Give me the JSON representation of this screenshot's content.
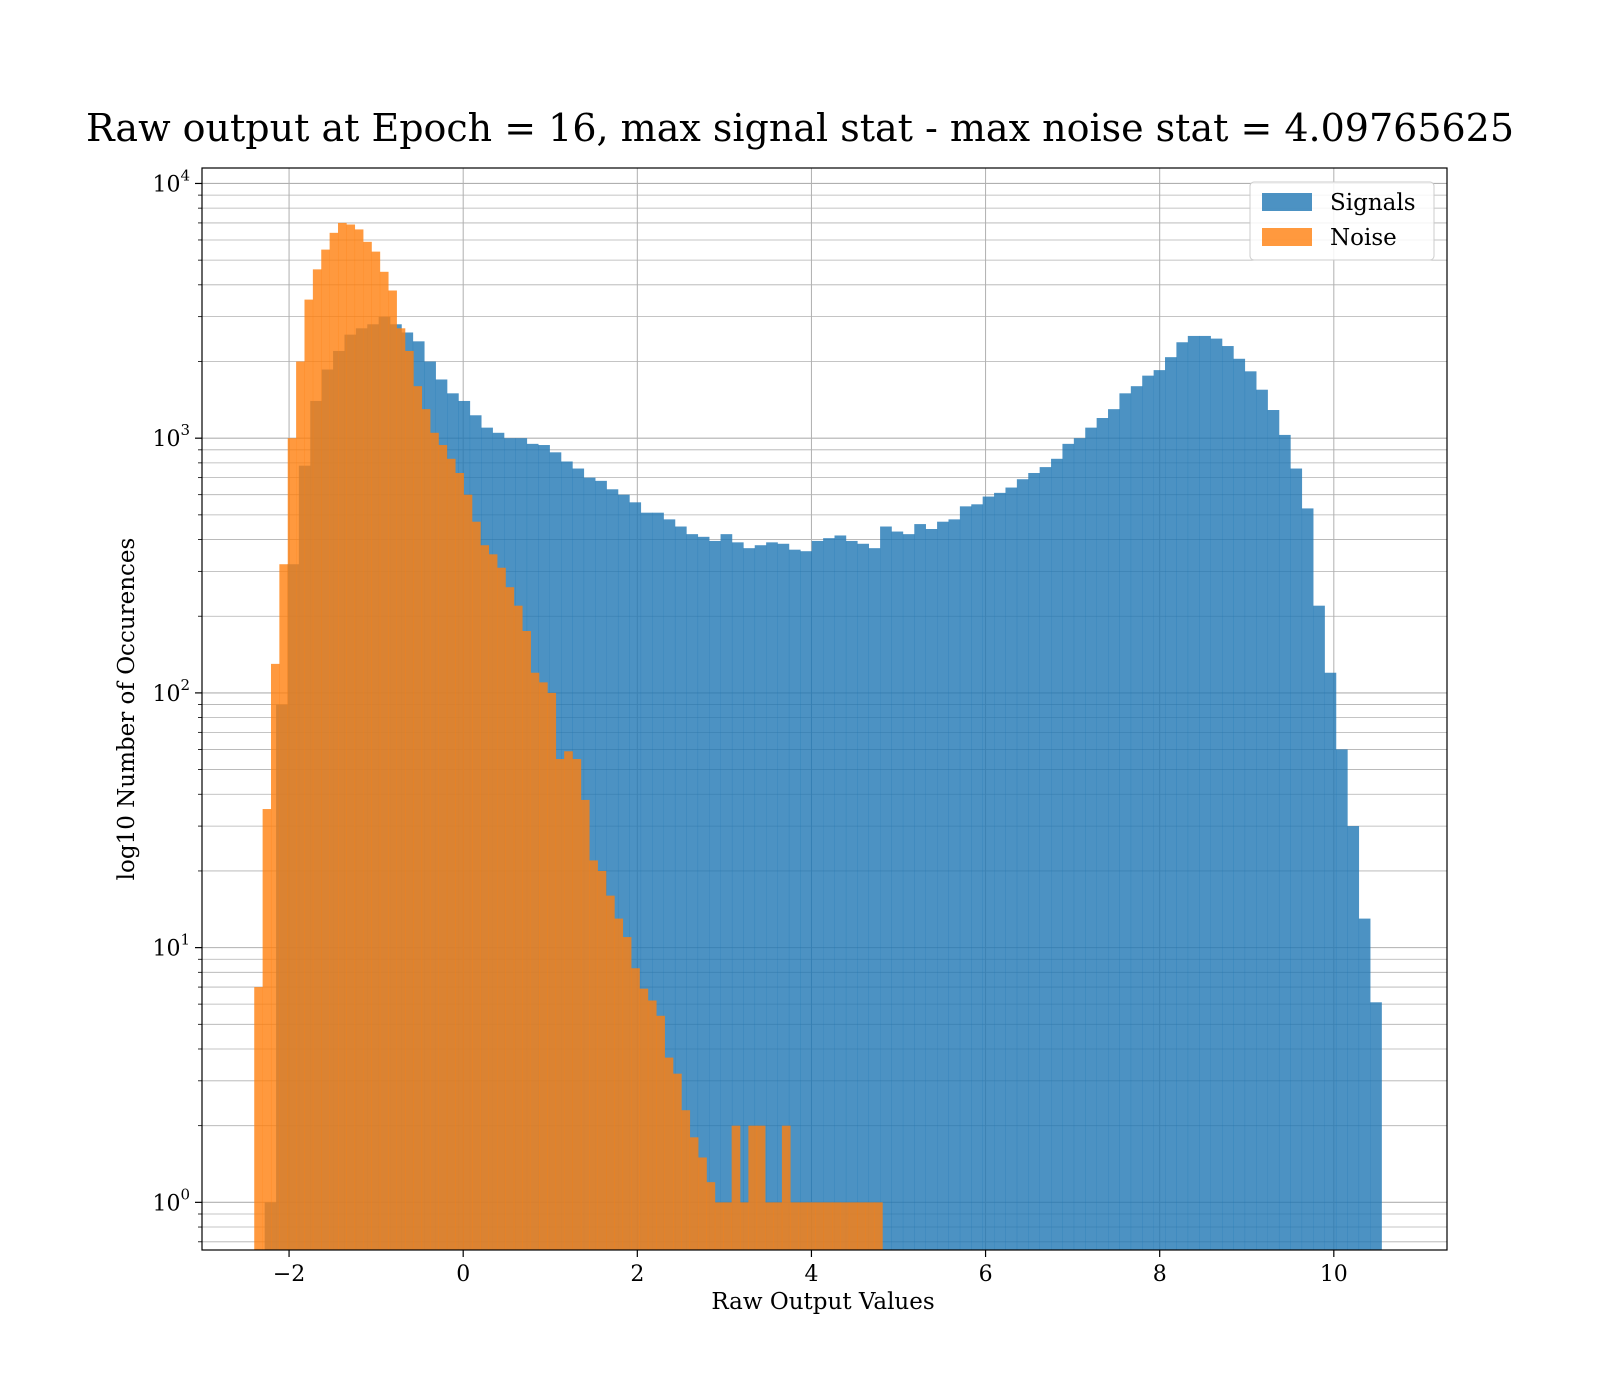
{
  "chart_data": {
    "type": "bar",
    "title": "Raw output at Epoch = 16, max signal stat - max noise stat = 4.09765625",
    "xlabel": "Raw Output Values",
    "ylabel": "log10 Number of Occurences",
    "xlim": [
      -3.0,
      11.3
    ],
    "ylim": [
      0.65,
      11500
    ],
    "yscale": "log",
    "grid": true,
    "legend_position": "top-right",
    "x_ticks": [
      {
        "value": -2,
        "label": "−2"
      },
      {
        "value": 0,
        "label": "0"
      },
      {
        "value": 2,
        "label": "2"
      },
      {
        "value": 4,
        "label": "4"
      },
      {
        "value": 6,
        "label": "6"
      },
      {
        "value": 8,
        "label": "8"
      },
      {
        "value": 10,
        "label": "10"
      }
    ],
    "y_ticks": [
      {
        "value": 1,
        "base": "10",
        "exp": "0"
      },
      {
        "value": 10,
        "base": "10",
        "exp": "1"
      },
      {
        "value": 100,
        "base": "10",
        "exp": "2"
      },
      {
        "value": 1000,
        "base": "10",
        "exp": "3"
      },
      {
        "value": 10000,
        "base": "10",
        "exp": "4"
      }
    ],
    "series": [
      {
        "name": "Signals",
        "color": "#1f77b4",
        "opacity": 0.8,
        "bin_start": -2.28,
        "bin_width": 0.1309,
        "values": [
          1,
          90,
          320,
          780,
          1400,
          1860,
          2200,
          2550,
          2700,
          2800,
          3000,
          2800,
          2600,
          2400,
          2000,
          1700,
          1500,
          1400,
          1230,
          1100,
          1050,
          1000,
          1000,
          950,
          940,
          880,
          810,
          760,
          700,
          680,
          630,
          600,
          560,
          510,
          510,
          480,
          450,
          420,
          410,
          395,
          420,
          390,
          370,
          380,
          390,
          385,
          365,
          360,
          395,
          405,
          415,
          395,
          385,
          370,
          450,
          430,
          420,
          460,
          440,
          470,
          480,
          540,
          550,
          590,
          610,
          640,
          690,
          730,
          770,
          830,
          950,
          1000,
          1100,
          1200,
          1300,
          1500,
          1600,
          1760,
          1850,
          2080,
          2380,
          2520,
          2520,
          2460,
          2300,
          2050,
          1830,
          1550,
          1290,
          1030,
          760,
          530,
          220,
          120,
          60,
          30,
          13,
          6.1
        ]
      },
      {
        "name": "Noise",
        "color": "#ff7f0e",
        "opacity": 0.8,
        "bin_start": -2.4,
        "bin_width": 0.0962,
        "values": [
          7,
          35,
          130,
          320,
          1000,
          2000,
          3500,
          4600,
          5500,
          6400,
          7000,
          6900,
          6600,
          5900,
          5400,
          4500,
          3800,
          2700,
          2200,
          1600,
          1300,
          1050,
          940,
          830,
          730,
          600,
          470,
          380,
          350,
          310,
          260,
          220,
          175,
          120,
          110,
          100,
          55,
          59,
          55,
          38,
          22,
          20,
          16,
          13,
          11,
          8.3,
          6.9,
          6.2,
          5.4,
          3.7,
          3.2,
          2.3,
          1.8,
          1.5,
          1.2,
          1.0,
          1.0,
          2.0,
          1.0,
          2.0,
          2.0,
          1.0,
          1.0,
          2.0,
          1.0,
          1.0,
          1.0,
          1.0,
          1.0,
          1.0,
          1.0,
          1.0,
          1.0,
          1.0,
          1.0
        ]
      }
    ]
  }
}
